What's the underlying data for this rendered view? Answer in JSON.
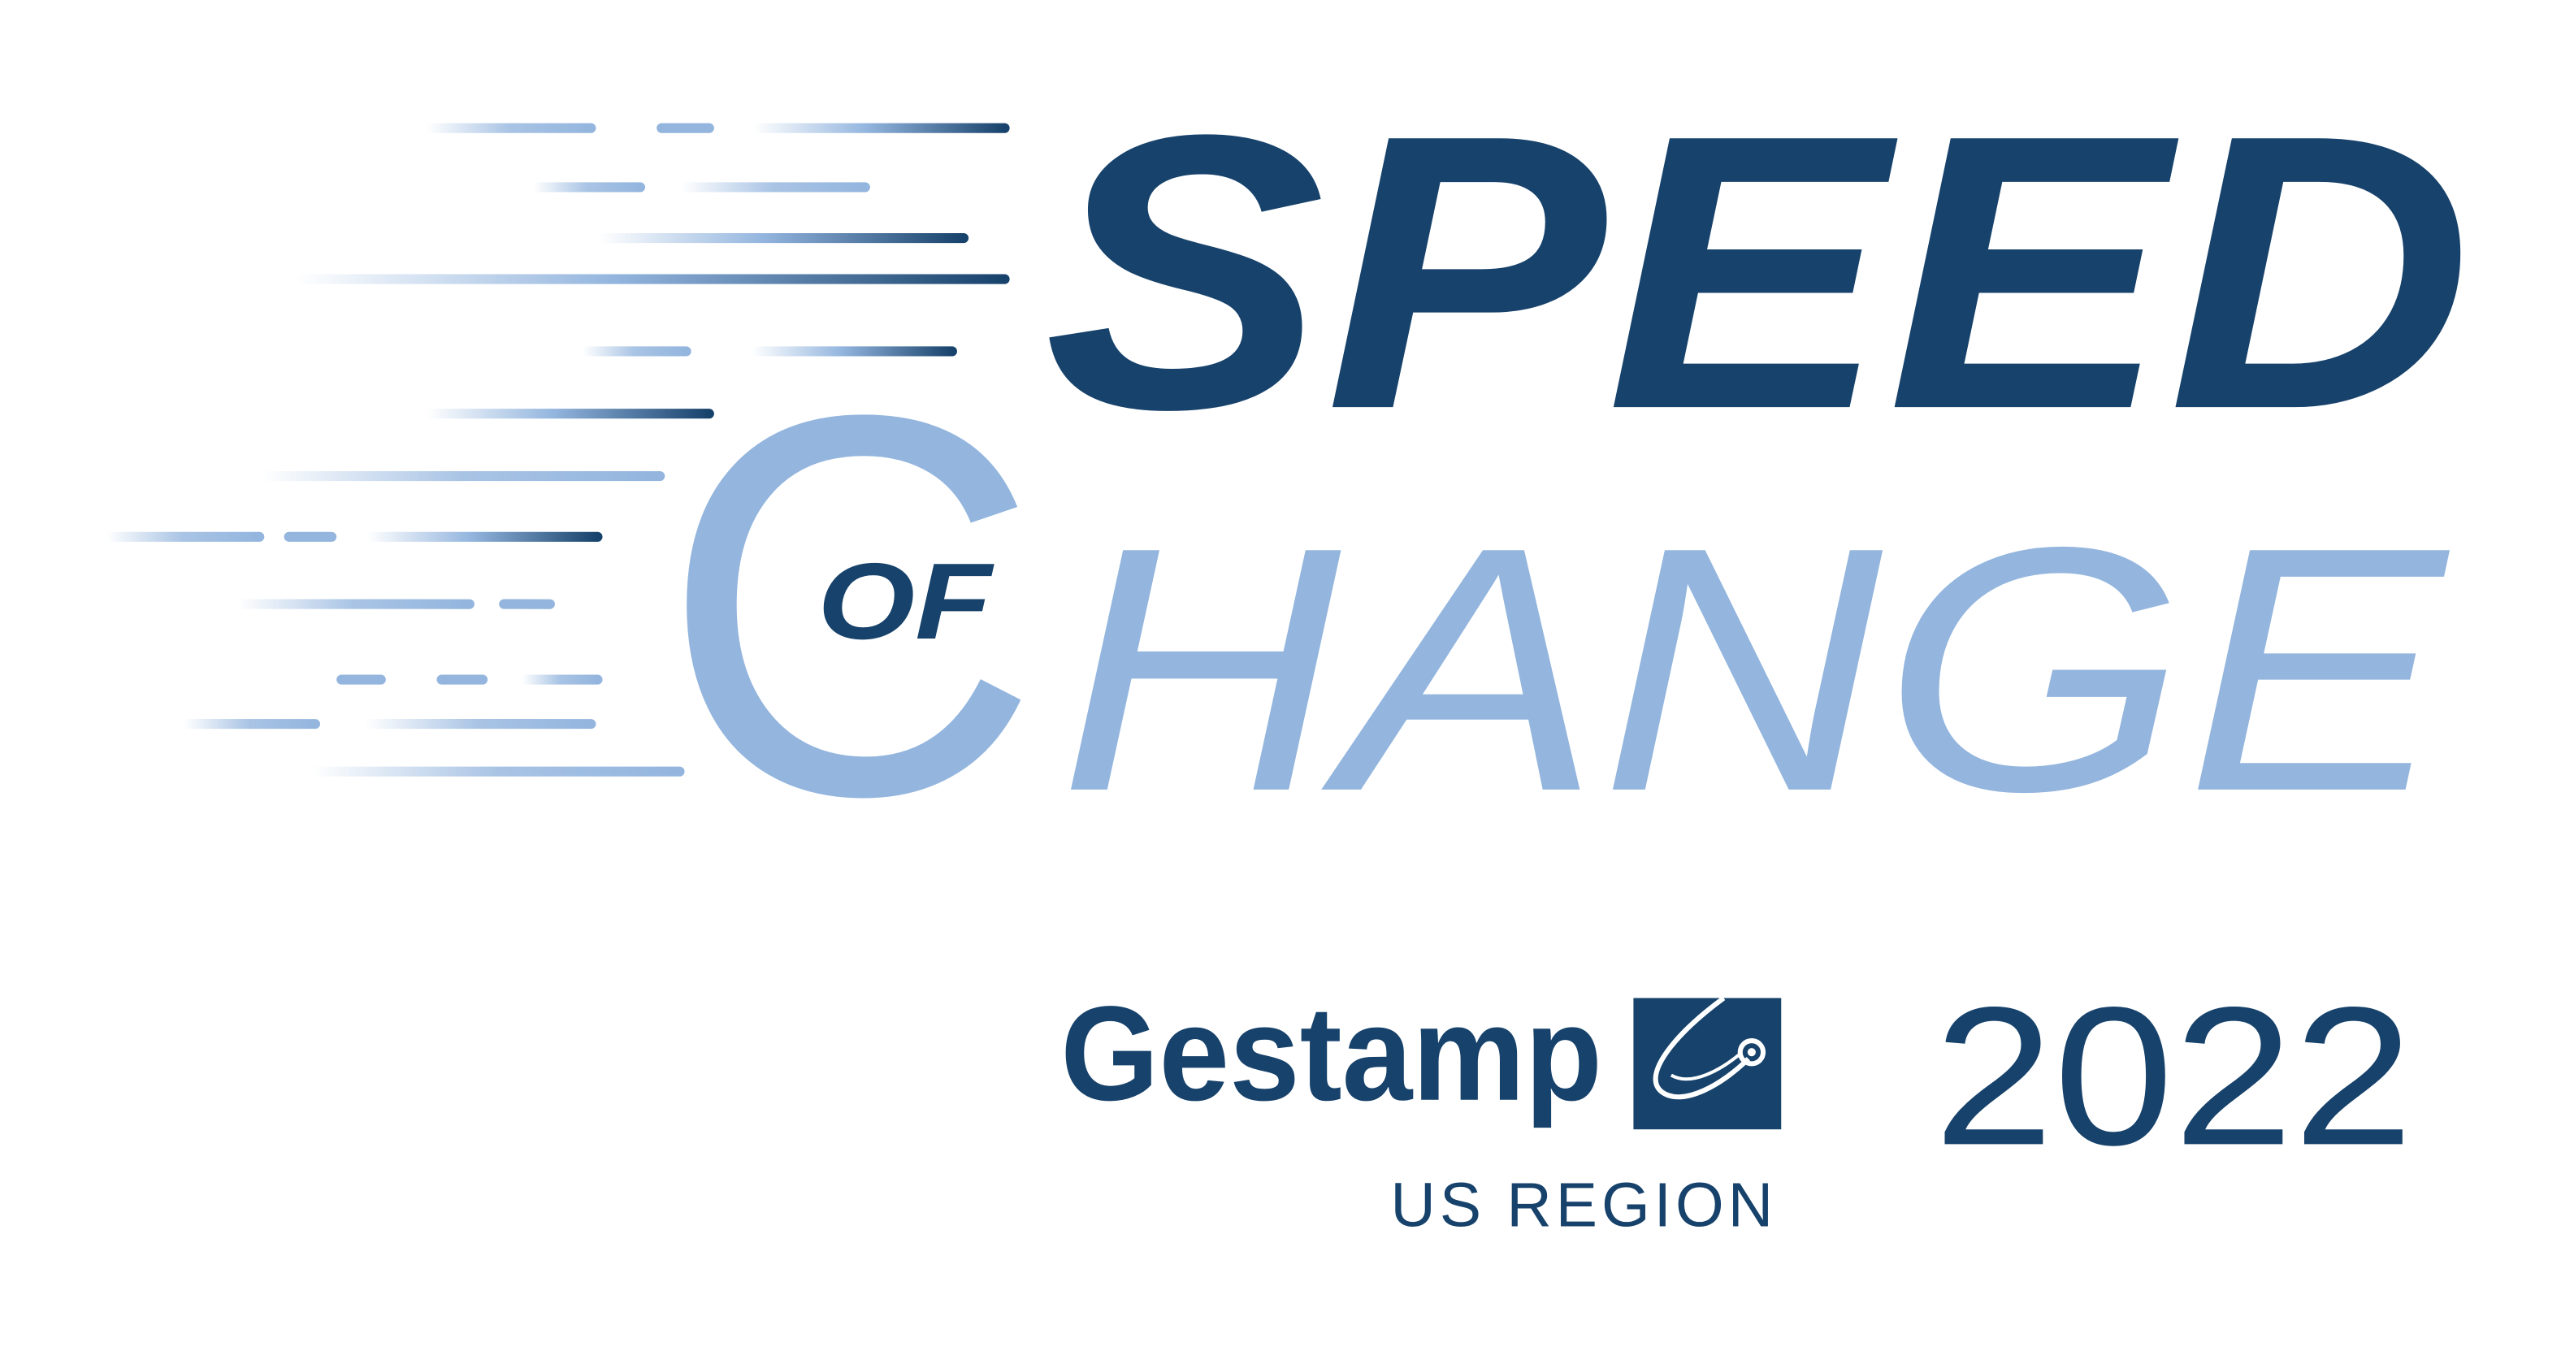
{
  "logo": {
    "speed": "SPEED",
    "of": "OF",
    "change_initial": "C",
    "change_rest": "HANGE"
  },
  "brand": {
    "name": "Gestamp",
    "region": "US REGION"
  },
  "year": "2022"
}
